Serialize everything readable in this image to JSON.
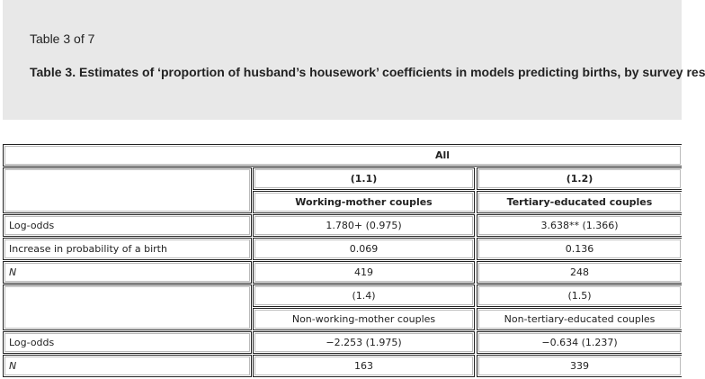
{
  "header": {
    "counter": "Table 3 of 7",
    "caption": "Table 3. Estimates of ‘proportion of husband’s housework’ coefficients in models predicting births, by survey res"
  },
  "table": {
    "group_header": "All",
    "section1": {
      "col1_number": "(1.1)",
      "col2_number": "(1.2)",
      "col1_label": "Working-mother couples",
      "col2_label": "Tertiary-educated couples",
      "rows": [
        {
          "label": "Log-odds",
          "c1": "1.780+ (0.975)",
          "c2": "3.638** (1.366)"
        },
        {
          "label": "Increase in probability of a birth",
          "c1": "0.069",
          "c2": "0.136"
        },
        {
          "label": "N",
          "c1": "419",
          "c2": "248"
        }
      ]
    },
    "section2": {
      "col1_number": "(1.4)",
      "col2_number": "(1.5)",
      "col1_label": "Non-working-mother couples",
      "col2_label": "Non-tertiary-educated couples",
      "rows": [
        {
          "label": "Log-odds",
          "c1": "−2.253 (1.975)",
          "c2": "−0.634 (1.237)"
        },
        {
          "label": "N",
          "c1": "163",
          "c2": "339"
        }
      ]
    }
  }
}
